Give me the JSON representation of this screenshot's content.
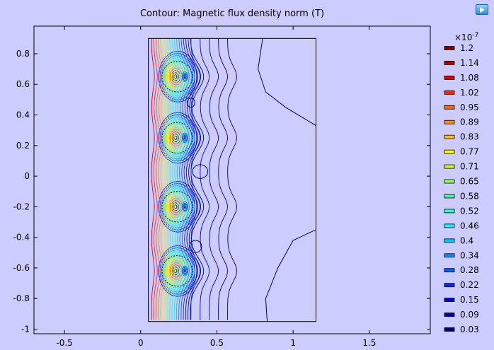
{
  "title": "Contour: Magnetic flux density norm (T)",
  "colorbar_exponent_base": "×10",
  "colorbar_exponent_power": "-7",
  "colors": {
    "background": "#ccccff",
    "plot_background": "#ccccff"
  },
  "chart_data": {
    "type": "contour",
    "title": "Contour: Magnetic flux density norm (T)",
    "xlabel": "",
    "ylabel": "",
    "xlim": [
      -0.7,
      1.9
    ],
    "ylim": [
      -1.03,
      0.98
    ],
    "x_ticks": [
      -0.5,
      0,
      0.5,
      1,
      1.5
    ],
    "x_tick_labels": [
      "-0.5",
      "0",
      "0.5",
      "1",
      "1.5"
    ],
    "y_ticks": [
      0.8,
      0.6,
      0.4,
      0.2,
      0,
      -0.2,
      -0.4,
      -0.6,
      -0.8,
      -1
    ],
    "y_tick_labels": [
      "0.8",
      "0.6",
      "0.4",
      "0.2",
      "0",
      "-0.2",
      "-0.4",
      "-0.6",
      "-0.8",
      "-1"
    ],
    "domain": {
      "x": [
        0.05,
        1.15
      ],
      "y": [
        -0.95,
        0.9
      ]
    },
    "coils": [
      {
        "x": 0.2,
        "y": 0.65,
        "r": 0.1
      },
      {
        "x": 0.2,
        "y": 0.25,
        "r": 0.1
      },
      {
        "x": 0.2,
        "y": -0.2,
        "r": 0.1
      },
      {
        "x": 0.2,
        "y": -0.62,
        "r": 0.1
      }
    ],
    "isolated_contours": [
      {
        "x": 0.33,
        "y": 0.48,
        "rx": 0.025,
        "ry": 0.03
      },
      {
        "x": 0.39,
        "y": 0.03,
        "rx": 0.05,
        "ry": 0.045
      },
      {
        "x": 0.36,
        "y": -0.46,
        "rx": 0.04,
        "ry": 0.04
      }
    ],
    "colorbar": {
      "exponent": "-7",
      "levels": [
        "1.2",
        "1.14",
        "1.08",
        "1.02",
        "0.95",
        "0.89",
        "0.83",
        "0.77",
        "0.71",
        "0.65",
        "0.58",
        "0.52",
        "0.46",
        "0.4",
        "0.34",
        "0.28",
        "0.22",
        "0.15",
        "0.09",
        "0.03"
      ],
      "colors": [
        "#800000",
        "#b00000",
        "#e00000",
        "#ff2800",
        "#ff6400",
        "#ff9000",
        "#ffc000",
        "#ffff00",
        "#d0ff20",
        "#90ff60",
        "#40ff90",
        "#20ffc8",
        "#00f8ff",
        "#00c8ff",
        "#0090ff",
        "#0060ff",
        "#0030ff",
        "#0000e8",
        "#0000b0",
        "#000070"
      ]
    }
  }
}
